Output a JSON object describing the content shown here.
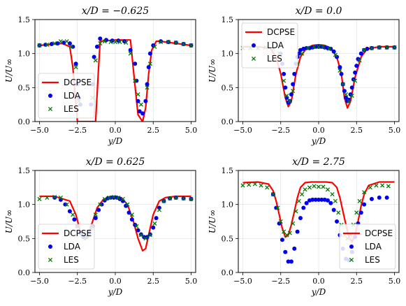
{
  "chart_data": [
    {
      "type": "line",
      "title": "x/D = −0.625",
      "xlabel": "y/D",
      "ylabel": "U/U∞",
      "xlim": [
        -5.3,
        5.3
      ],
      "ylim": [
        0,
        1.5
      ],
      "xticks": [
        "−5.0",
        "−2.5",
        "0.0",
        "2.5",
        "5.0"
      ],
      "yticks": [
        "0.0",
        "0.5",
        "1.0",
        "1.5"
      ],
      "grid": true,
      "legend_position": "lower-left",
      "series": [
        {
          "name": "DCPSE",
          "style": "line",
          "color": "#ff0000",
          "x": [
            -5.0,
            -3.5,
            -3.0,
            -2.8,
            -2.5,
            -2.2,
            -2.0,
            -1.7,
            -1.5,
            -1.3,
            -1.1,
            -1.0,
            0.0,
            1.0,
            1.2,
            1.5,
            1.8,
            2.0,
            2.2,
            2.4,
            2.7,
            3.0,
            4.0,
            5.0
          ],
          "y": [
            1.12,
            1.15,
            1.1,
            0.8,
            0.0,
            0.0,
            0.0,
            0.0,
            0.0,
            0.0,
            0.8,
            1.18,
            1.2,
            1.2,
            0.75,
            0.1,
            0.0,
            0.2,
            0.7,
            1.05,
            1.18,
            1.18,
            1.15,
            1.12
          ]
        },
        {
          "name": "LDA",
          "style": "dots",
          "color": "#0000ee",
          "x": [
            -5.0,
            -4.6,
            -4.2,
            -3.8,
            -3.4,
            -3.0,
            -2.8,
            -2.6,
            -2.5,
            -2.4,
            -2.3,
            -1.6,
            -1.5,
            -1.4,
            -1.2,
            -1.0,
            -0.6,
            -0.2,
            0.2,
            0.6,
            1.0,
            1.3,
            1.4,
            1.5,
            1.6,
            1.8,
            2.0,
            2.1,
            2.2,
            2.3,
            2.5,
            3.0,
            3.5,
            4.0,
            4.5,
            5.0
          ],
          "y": [
            1.12,
            1.13,
            1.14,
            1.15,
            1.16,
            1.15,
            1.1,
            0.85,
            0.55,
            0.35,
            0.25,
            0.25,
            0.55,
            0.95,
            1.1,
            1.22,
            1.2,
            1.19,
            1.19,
            1.18,
            1.05,
            0.85,
            0.6,
            0.3,
            0.15,
            0.12,
            0.3,
            0.55,
            0.8,
            1.0,
            1.12,
            1.18,
            1.17,
            1.16,
            1.14,
            1.12
          ]
        },
        {
          "name": "LES",
          "style": "crosses",
          "color": "#007a00",
          "x": [
            -5.0,
            -4.5,
            -4.0,
            -3.6,
            -3.2,
            -2.9,
            -2.6,
            -2.4,
            -1.5,
            -1.3,
            -1.0,
            -0.7,
            -0.3,
            0.0,
            0.3,
            0.7,
            1.0,
            1.3,
            1.5,
            1.7,
            2.1,
            2.3,
            2.6,
            3.0,
            3.5,
            4.0,
            4.5,
            5.0
          ],
          "y": [
            1.12,
            1.13,
            1.15,
            1.18,
            1.18,
            1.1,
            0.8,
            0.3,
            0.35,
            0.9,
            1.15,
            1.18,
            1.17,
            1.17,
            1.17,
            1.16,
            1.0,
            0.6,
            0.4,
            0.25,
            0.5,
            0.85,
            1.1,
            1.17,
            1.17,
            1.16,
            1.14,
            1.12
          ]
        }
      ]
    },
    {
      "type": "line",
      "title": "x/D = 0.0",
      "xlabel": "y/D",
      "ylabel": "U/U∞",
      "xlim": [
        -5.3,
        5.3
      ],
      "ylim": [
        0,
        1.5
      ],
      "xticks": [
        "−5.0",
        "−2.5",
        "0.0",
        "2.5",
        "5.0"
      ],
      "yticks": [
        "0.0",
        "0.5",
        "1.0",
        "1.5"
      ],
      "grid": true,
      "legend_position": "upper-left",
      "series": [
        {
          "name": "DCPSE",
          "style": "line",
          "color": "#ff0000",
          "x": [
            -5.0,
            -4.0,
            -3.2,
            -2.8,
            -2.5,
            -2.2,
            -2.0,
            -1.8,
            -1.5,
            -1.2,
            -0.8,
            -0.4,
            0.0,
            0.4,
            0.8,
            1.2,
            1.5,
            1.7,
            1.9,
            2.1,
            2.4,
            2.8,
            3.2,
            4.0,
            5.0
          ],
          "y": [
            1.1,
            1.1,
            1.08,
            0.95,
            0.7,
            0.35,
            0.22,
            0.3,
            0.7,
            0.95,
            1.08,
            1.12,
            1.13,
            1.12,
            1.08,
            0.95,
            0.7,
            0.35,
            0.2,
            0.3,
            0.65,
            0.95,
            1.07,
            1.1,
            1.1
          ]
        },
        {
          "name": "LDA",
          "style": "dots",
          "color": "#0000ee",
          "x": [
            -2.5,
            -2.4,
            -2.3,
            -2.2,
            -2.1,
            -2.0,
            -1.9,
            -1.8,
            -1.7,
            -1.6,
            -1.5,
            -1.4,
            -1.3,
            -1.2,
            -1.0,
            -0.8,
            -0.6,
            -0.4,
            -0.2,
            0.0,
            0.2,
            0.4,
            0.6,
            0.8,
            1.0,
            1.2,
            1.4,
            1.5,
            1.6,
            1.7,
            1.8,
            1.9,
            2.0,
            2.1,
            2.2,
            2.3,
            2.4,
            2.5,
            2.6,
            2.8,
            3.0,
            3.2,
            3.5,
            4.0,
            4.5,
            5.0
          ],
          "y": [
            1.0,
            0.85,
            0.7,
            0.5,
            0.35,
            0.28,
            0.3,
            0.4,
            0.55,
            0.7,
            0.85,
            0.95,
            1.0,
            1.05,
            1.07,
            1.08,
            1.08,
            1.09,
            1.1,
            1.1,
            1.1,
            1.09,
            1.08,
            1.07,
            1.03,
            0.95,
            0.8,
            0.7,
            0.55,
            0.45,
            0.35,
            0.3,
            0.32,
            0.4,
            0.5,
            0.62,
            0.72,
            0.82,
            0.92,
            1.0,
            1.05,
            1.07,
            1.08,
            1.09,
            1.09,
            1.09
          ]
        },
        {
          "name": "LES",
          "style": "crosses",
          "color": "#007a00",
          "x": [
            -5.0,
            -4.5,
            -4.0,
            -3.5,
            -3.0,
            -2.6,
            -2.3,
            -2.1,
            -1.9,
            -1.7,
            -1.4,
            -1.1,
            -0.7,
            -0.3,
            0.0,
            0.3,
            0.7,
            1.1,
            1.4,
            1.6,
            1.8,
            2.0,
            2.2,
            2.4,
            2.7,
            3.0,
            3.5,
            4.0,
            4.5,
            5.0
          ],
          "y": [
            1.08,
            1.08,
            1.08,
            1.09,
            1.07,
            1.0,
            0.6,
            0.38,
            0.3,
            0.45,
            0.85,
            1.0,
            1.08,
            1.1,
            1.1,
            1.1,
            1.07,
            0.98,
            0.75,
            0.55,
            0.4,
            0.3,
            0.38,
            0.6,
            0.9,
            1.05,
            1.08,
            1.09,
            1.09,
            1.09
          ]
        }
      ]
    },
    {
      "type": "line",
      "title": "x/D = 0.625",
      "xlabel": "y/D",
      "ylabel": "U/U∞",
      "xlim": [
        -5.3,
        5.3
      ],
      "ylim": [
        0,
        1.5
      ],
      "xticks": [
        "−5.0",
        "−2.5",
        "0.0",
        "2.5",
        "5.0"
      ],
      "yticks": [
        "0.0",
        "0.5",
        "1.0",
        "1.5"
      ],
      "grid": true,
      "legend_position": "lower-left",
      "series": [
        {
          "name": "DCPSE",
          "style": "line",
          "color": "#ff0000",
          "x": [
            -5.0,
            -4.0,
            -3.0,
            -2.6,
            -2.3,
            -2.0,
            -1.8,
            -1.5,
            -1.2,
            -0.8,
            -0.4,
            0.0,
            0.4,
            0.8,
            1.2,
            1.5,
            1.8,
            2.0,
            2.2,
            2.5,
            2.9,
            3.3,
            4.0,
            5.0
          ],
          "y": [
            1.12,
            1.12,
            1.05,
            0.85,
            0.6,
            0.48,
            0.55,
            0.75,
            0.95,
            1.07,
            1.11,
            1.12,
            1.1,
            1.0,
            0.75,
            0.5,
            0.32,
            0.35,
            0.55,
            0.85,
            1.05,
            1.1,
            1.12,
            1.12
          ]
        },
        {
          "name": "LDA",
          "style": "dots",
          "color": "#0000ee",
          "x": [
            -4.0,
            -3.6,
            -3.3,
            -3.0,
            -2.7,
            -2.5,
            -2.3,
            -2.1,
            -1.9,
            -1.7,
            -1.5,
            -1.3,
            -1.1,
            -0.9,
            -0.7,
            -0.5,
            -0.3,
            -0.1,
            0.1,
            0.3,
            0.5,
            0.7,
            0.9,
            1.1,
            1.3,
            1.5,
            1.7,
            1.9,
            2.1,
            2.3,
            2.5,
            2.7,
            2.9,
            3.2,
            3.6,
            4.0,
            4.5,
            5.0
          ],
          "y": [
            1.1,
            1.07,
            1.0,
            0.9,
            0.78,
            0.68,
            0.58,
            0.52,
            0.52,
            0.58,
            0.68,
            0.8,
            0.92,
            1.0,
            1.06,
            1.09,
            1.1,
            1.1,
            1.1,
            1.08,
            1.05,
            0.98,
            0.88,
            0.78,
            0.7,
            0.62,
            0.56,
            0.52,
            0.52,
            0.56,
            0.66,
            0.8,
            0.95,
            1.05,
            1.09,
            1.1,
            1.09,
            1.08
          ]
        },
        {
          "name": "LES",
          "style": "crosses",
          "color": "#007a00",
          "x": [
            -5.0,
            -4.5,
            -4.0,
            -3.6,
            -3.2,
            -2.8,
            -2.5,
            -2.2,
            -1.9,
            -1.6,
            -1.3,
            -1.0,
            -0.7,
            -0.4,
            -0.1,
            0.2,
            0.5,
            0.8,
            1.1,
            1.4,
            1.7,
            2.0,
            2.3,
            2.6,
            2.9,
            3.2,
            3.6,
            4.0,
            4.5,
            5.0
          ],
          "y": [
            1.08,
            1.1,
            1.11,
            1.1,
            1.0,
            0.85,
            0.68,
            0.55,
            0.52,
            0.65,
            0.85,
            1.0,
            1.08,
            1.1,
            1.11,
            1.1,
            1.08,
            1.0,
            0.85,
            0.68,
            0.55,
            0.5,
            0.55,
            0.72,
            0.92,
            1.05,
            1.09,
            1.1,
            1.09,
            1.08
          ]
        }
      ]
    },
    {
      "type": "line",
      "title": "x/D = 2.75",
      "xlabel": "y/D",
      "ylabel": "U/U∞",
      "xlim": [
        -5.3,
        5.3
      ],
      "ylim": [
        0,
        1.5
      ],
      "xticks": [
        "−5.0",
        "−2.5",
        "0.0",
        "2.5",
        "5.0"
      ],
      "yticks": [
        "0.0",
        "0.5",
        "1.0",
        "1.5"
      ],
      "grid": true,
      "legend_position": "lower-right",
      "series": [
        {
          "name": "DCPSE",
          "style": "line",
          "color": "#ff0000",
          "x": [
            -5.0,
            -4.0,
            -3.3,
            -3.0,
            -2.8,
            -2.6,
            -2.4,
            -2.2,
            -2.0,
            -1.8,
            -1.6,
            -1.4,
            -1.2,
            -0.9,
            -0.5,
            0.0,
            0.5,
            0.9,
            1.2,
            1.4,
            1.6,
            1.8,
            2.0,
            2.2,
            2.4,
            2.6,
            2.8,
            3.0,
            3.3,
            4.0,
            5.0
          ],
          "y": [
            1.32,
            1.33,
            1.3,
            1.2,
            1.05,
            0.85,
            0.65,
            0.52,
            0.55,
            0.7,
            0.9,
            1.1,
            1.25,
            1.32,
            1.33,
            1.33,
            1.33,
            1.32,
            1.25,
            1.1,
            0.9,
            0.7,
            0.52,
            0.45,
            0.55,
            0.75,
            0.98,
            1.15,
            1.28,
            1.33,
            1.33
          ]
        },
        {
          "name": "LDA",
          "style": "dots",
          "color": "#0000ee",
          "x": [
            -3.0,
            -2.8,
            -2.6,
            -2.4,
            -2.2,
            -2.0,
            -1.8,
            -1.6,
            -1.4,
            -1.2,
            -1.0,
            -0.8,
            -0.6,
            -0.4,
            -0.2,
            0.0,
            0.2,
            0.4,
            0.6,
            0.8,
            1.0,
            1.2,
            1.4,
            1.6,
            1.8,
            2.0,
            2.2,
            2.4,
            2.6,
            2.8,
            3.0,
            3.5,
            4.0,
            4.5
          ],
          "y": [
            1.15,
            0.95,
            0.72,
            0.48,
            0.3,
            0.16,
            0.16,
            0.35,
            0.6,
            0.8,
            0.95,
            1.02,
            1.06,
            1.07,
            1.07,
            1.07,
            1.07,
            1.07,
            1.06,
            1.02,
            0.92,
            0.75,
            0.55,
            0.35,
            0.2,
            0.18,
            0.3,
            0.52,
            0.72,
            0.88,
            1.0,
            1.08,
            1.1,
            1.1
          ]
        },
        {
          "name": "LES",
          "style": "crosses",
          "color": "#007a00",
          "x": [
            -5.0,
            -4.6,
            -4.2,
            -3.8,
            -3.4,
            -3.0,
            -2.7,
            -2.5,
            -2.3,
            -2.1,
            -1.9,
            -1.7,
            -1.5,
            -1.3,
            -1.1,
            -0.9,
            -0.6,
            -0.3,
            0.0,
            0.3,
            0.6,
            0.9,
            1.1,
            1.3,
            1.5,
            1.7,
            1.9,
            2.1,
            2.3,
            2.5,
            2.7,
            3.0,
            3.4,
            3.8,
            4.2,
            4.6
          ],
          "y": [
            1.28,
            1.29,
            1.3,
            1.28,
            1.25,
            1.15,
            0.95,
            0.75,
            0.6,
            0.55,
            0.58,
            0.72,
            0.9,
            1.05,
            1.15,
            1.22,
            1.25,
            1.27,
            1.26,
            1.26,
            1.22,
            1.15,
            1.05,
            0.88,
            0.7,
            0.55,
            0.5,
            0.55,
            0.7,
            0.88,
            1.05,
            1.18,
            1.25,
            1.28,
            1.28,
            1.27
          ]
        }
      ]
    }
  ]
}
